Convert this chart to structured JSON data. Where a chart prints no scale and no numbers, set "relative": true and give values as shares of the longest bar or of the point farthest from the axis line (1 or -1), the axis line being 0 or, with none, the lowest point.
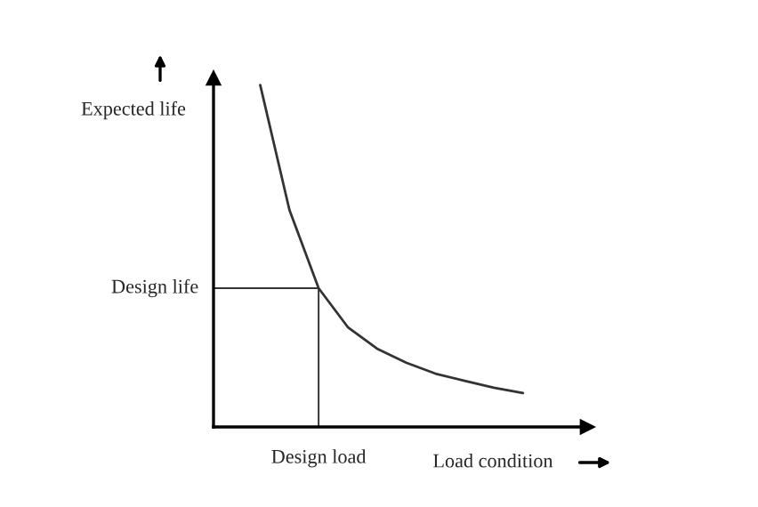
{
  "chart_data": {
    "type": "line",
    "relative": true,
    "xlabel": "Load condition",
    "ylabel": "Expected life",
    "categories": [
      null,
      null,
      null,
      null,
      null,
      null,
      null,
      null,
      null,
      null
    ],
    "series": [
      {
        "color": "#333333",
        "values": [
          1,
          0.635,
          0.406,
          0.292,
          0.229,
          0.188,
          0.156,
          0.135,
          0.115,
          0.099
        ]
      }
    ],
    "ref_lines": [
      {
        "axis": "y",
        "value": 0.406,
        "label": "Design life",
        "color": "#333333"
      }
    ],
    "annotations": [
      "Design load"
    ],
    "grid": false,
    "legend": false
  }
}
